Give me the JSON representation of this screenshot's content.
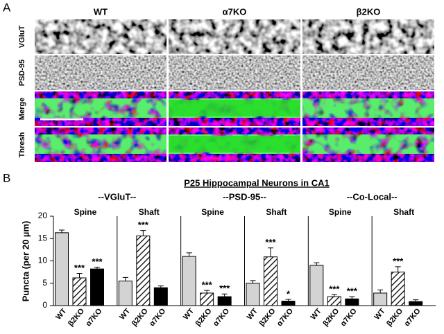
{
  "panel_a": {
    "label": "A",
    "columns": [
      "WT",
      "α7KO",
      "β2KO"
    ],
    "rows": [
      "VGluT",
      "PSD-95",
      "Merge",
      "Thresh"
    ]
  },
  "chart_data": {
    "type": "bar",
    "label": "B",
    "title": "P25 Hippocampal Neurons in CA1",
    "y_label": "Puncta (per 20 µm)",
    "categories": [
      "WT",
      "β2KO",
      "α7KO"
    ],
    "styles": [
      {
        "fill": "#d3d3d3",
        "hatch": false
      },
      {
        "fill": "#ffffff",
        "hatch": true
      },
      {
        "fill": "#000000",
        "hatch": false
      }
    ],
    "ylim": [
      0,
      20
    ],
    "yticks": [
      0,
      5,
      10,
      15,
      20
    ],
    "groups": [
      {
        "title": "--VGluT--",
        "subplots": [
          {
            "title": "Spine",
            "values": [
              16.3,
              6.2,
              8.2
            ],
            "errors": [
              0.6,
              1.0,
              0.4
            ],
            "annotations": [
              null,
              "***",
              "***"
            ]
          },
          {
            "title": "Shaft",
            "values": [
              5.5,
              15.6,
              4.0
            ],
            "errors": [
              0.8,
              1.2,
              0.4
            ],
            "annotations": [
              null,
              "***",
              null
            ]
          }
        ]
      },
      {
        "title": "--PSD-95--",
        "subplots": [
          {
            "title": "Spine",
            "values": [
              11.0,
              2.8,
              2.0
            ],
            "errors": [
              0.8,
              0.6,
              0.6
            ],
            "annotations": [
              null,
              "***",
              "***"
            ]
          },
          {
            "title": "Shaft",
            "values": [
              5.0,
              10.9,
              1.0
            ],
            "errors": [
              0.6,
              2.0,
              0.4
            ],
            "annotations": [
              null,
              "***",
              "*"
            ]
          }
        ]
      },
      {
        "title": "--Co-Local--",
        "subplots": [
          {
            "title": "Spine",
            "values": [
              9.0,
              2.0,
              1.5
            ],
            "errors": [
              0.6,
              0.5,
              0.5
            ],
            "annotations": [
              null,
              "***",
              "***"
            ]
          },
          {
            "title": "Shaft",
            "values": [
              2.8,
              7.5,
              0.9
            ],
            "errors": [
              0.7,
              1.2,
              0.4
            ],
            "annotations": [
              null,
              "***",
              null
            ]
          }
        ]
      }
    ]
  }
}
